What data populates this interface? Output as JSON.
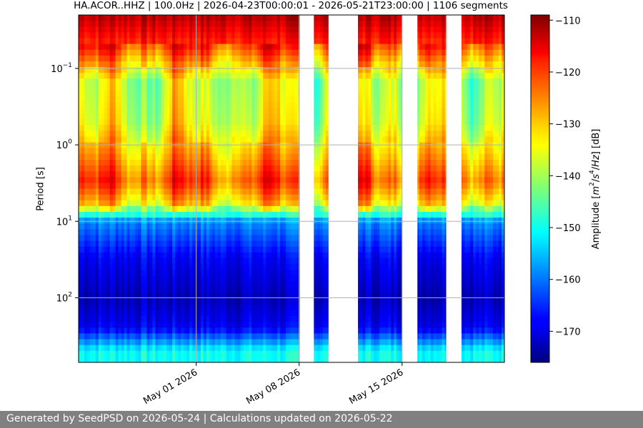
{
  "title": "HA.ACOR..HHZ | 100.0Hz | 2026-04-23T00:00:01 - 2026-05-21T23:00:00 | 1106 segments",
  "footer": "Generated by SeedPSD on 2026-05-24 | Calculations updated on 2026-05-22",
  "chart_data": {
    "type": "heatmap",
    "title": "HA.ACOR..HHZ | 100.0Hz | 2026-04-23T00:00:01 - 2026-05-21T23:00:00 | 1106 segments",
    "ylabel": "Period [s]",
    "y_scale": "log",
    "y_inverted": true,
    "ylim": [
      0.02,
      700
    ],
    "y_ticks": [
      {
        "value": 0.1,
        "label": "10",
        "exp": "−1"
      },
      {
        "value": 1,
        "label": "10",
        "exp": "0"
      },
      {
        "value": 10,
        "label": "10",
        "exp": "1"
      },
      {
        "value": 100,
        "label": "10",
        "exp": "2"
      }
    ],
    "xlim": [
      "2026-04-23",
      "2026-05-21T23:00"
    ],
    "x_ticks": [
      {
        "value": "2026-05-01",
        "label": "May 01 2026"
      },
      {
        "value": "2026-05-08",
        "label": "May 08 2026"
      },
      {
        "value": "2026-05-15",
        "label": "May 15 2026"
      }
    ],
    "data_gaps": [
      [
        "2026-05-08T01:00",
        "2026-05-09T00:00"
      ],
      [
        "2026-05-10T00:00",
        "2026-05-12T00:00"
      ],
      [
        "2026-05-15T00:00",
        "2026-05-16T01:00"
      ],
      [
        "2026-05-18T00:00",
        "2026-05-19T01:00"
      ]
    ],
    "colorbar": {
      "label": "Amplitude [m²/s⁴/Hz] [dB]",
      "label_parts": [
        "Amplitude [",
        "m",
        "2",
        "/",
        "s",
        "4",
        "/",
        "Hz",
        "] [dB]"
      ],
      "range": [
        -176,
        -109
      ],
      "ticks": [
        -110,
        -120,
        -130,
        -140,
        -150,
        -160,
        -170
      ],
      "tick_labels": [
        "−110",
        "−120",
        "−130",
        "−140",
        "−150",
        "−160",
        "−170"
      ],
      "colormap": "jet"
    },
    "amplitude_profile_db": [
      {
        "period": 0.02,
        "db": -112
      },
      {
        "period": 0.05,
        "db": -120
      },
      {
        "period": 0.15,
        "db": -138
      },
      {
        "period": 0.5,
        "db": -136
      },
      {
        "period": 1.5,
        "db": -128
      },
      {
        "period": 3,
        "db": -122
      },
      {
        "period": 6,
        "db": -132
      },
      {
        "period": 10,
        "db": -158
      },
      {
        "period": 30,
        "db": -168
      },
      {
        "period": 100,
        "db": -172
      },
      {
        "period": 250,
        "db": -168
      },
      {
        "period": 500,
        "db": -150
      }
    ],
    "grid": true
  }
}
